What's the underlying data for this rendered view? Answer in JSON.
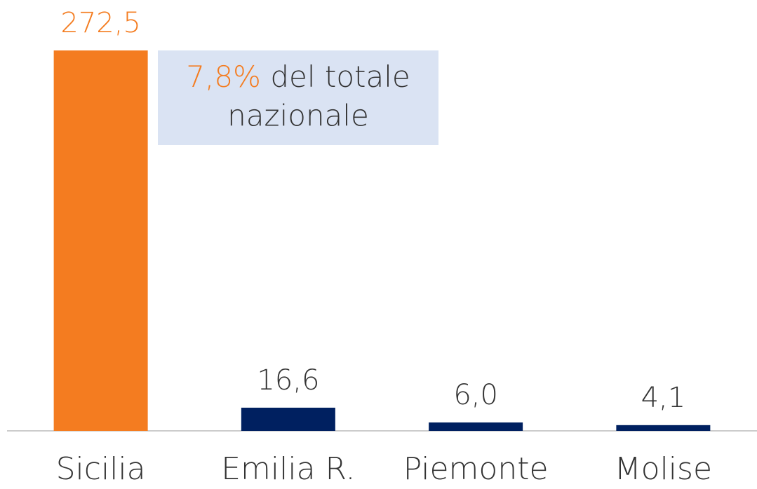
{
  "chart_data": {
    "type": "bar",
    "categories": [
      "Sicilia",
      "Emilia R.",
      "Piemonte",
      "Molise"
    ],
    "values": [
      272.5,
      16.6,
      6.0,
      4.1
    ],
    "value_labels": [
      "272,5",
      "16,6",
      "6,0",
      "4,1"
    ],
    "colors": [
      "#f47c20",
      "#002060",
      "#002060",
      "#002060"
    ],
    "ylim": [
      0,
      272.5
    ],
    "annotation": {
      "highlight": "7,8%",
      "lines": [
        "del totale",
        "nazionale"
      ]
    }
  }
}
